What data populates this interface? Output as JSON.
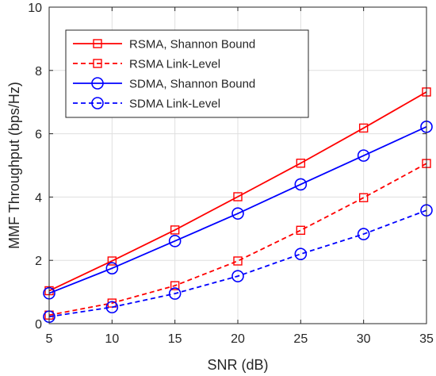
{
  "chart_data": {
    "type": "line",
    "xlabel": "SNR (dB)",
    "ylabel": "MMF Throughput (bps/Hz)",
    "x": [
      5,
      10,
      15,
      20,
      25,
      30,
      35
    ],
    "xlim": [
      5,
      35
    ],
    "ylim": [
      0,
      10
    ],
    "xticks": [
      "5",
      "10",
      "15",
      "20",
      "25",
      "30",
      "35"
    ],
    "yticks": [
      "0",
      "2",
      "4",
      "6",
      "8",
      "10"
    ],
    "grid": true,
    "legend_position": "top-left",
    "series": [
      {
        "name": "RSMA, Shannon Bound",
        "color": "#ff0000",
        "marker": "square",
        "line": "solid",
        "values": [
          1.04,
          1.98,
          2.96,
          4.01,
          5.07,
          6.18,
          7.32
        ]
      },
      {
        "name": "RSMA Link-Level",
        "color": "#ff0000",
        "marker": "square",
        "line": "dashed",
        "values": [
          0.27,
          0.65,
          1.2,
          1.98,
          2.95,
          3.98,
          5.06
        ]
      },
      {
        "name": "SDMA, Shannon Bound",
        "color": "#0000ff",
        "marker": "circle",
        "line": "solid",
        "values": [
          0.96,
          1.75,
          2.61,
          3.48,
          4.4,
          5.31,
          6.22
        ]
      },
      {
        "name": "SDMA Link-Level",
        "color": "#0000ff",
        "marker": "circle",
        "line": "dashed",
        "values": [
          0.22,
          0.52,
          0.95,
          1.5,
          2.2,
          2.83,
          3.58
        ]
      }
    ]
  }
}
